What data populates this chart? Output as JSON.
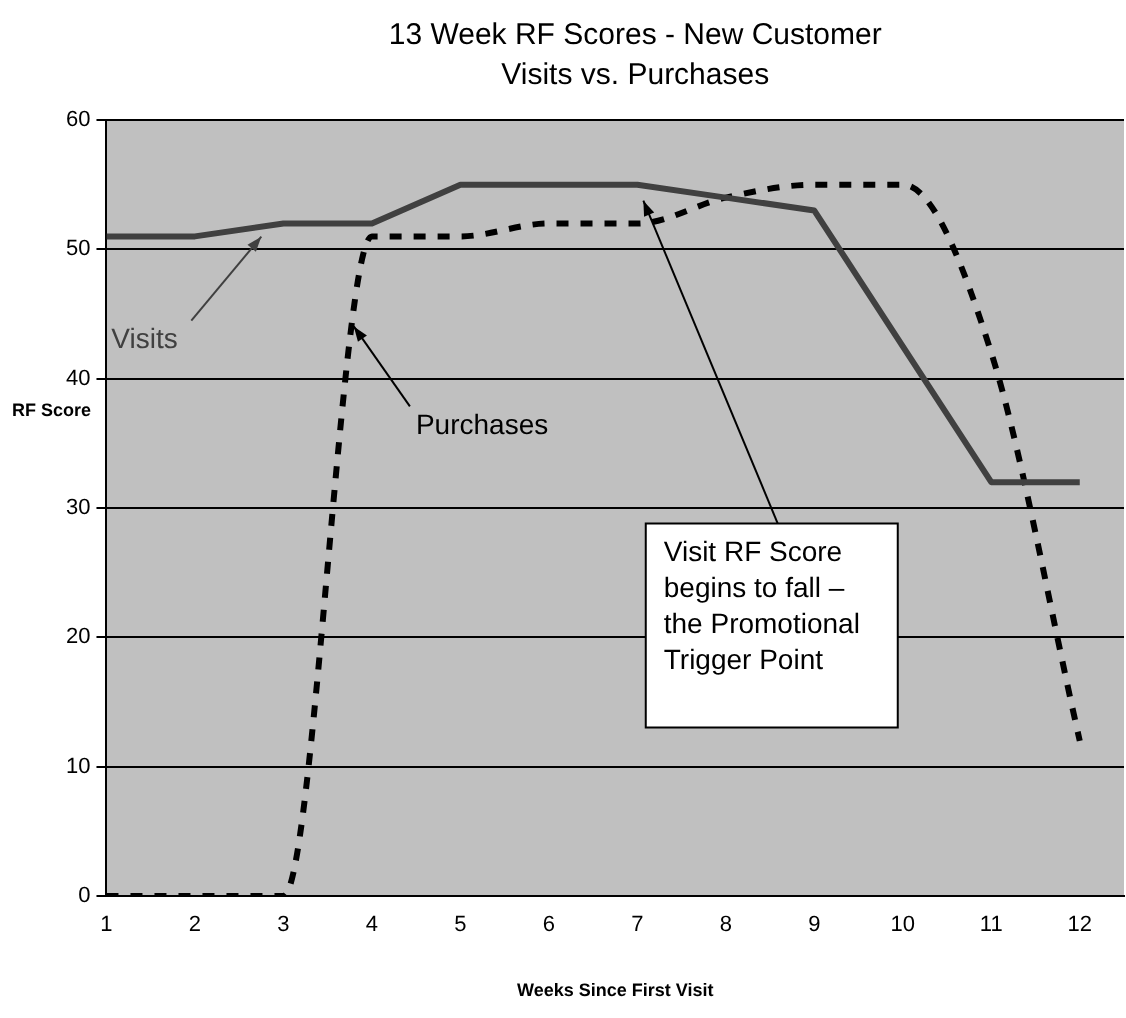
{
  "chart_data": {
    "type": "line",
    "title": "13 Week RF Scores - New Customer",
    "subtitle": "Visits vs. Purchases",
    "xlabel": "Weeks Since First Visit",
    "ylabel": "RF Score",
    "x": [
      1,
      2,
      3,
      4,
      5,
      6,
      7,
      8,
      9,
      10,
      11,
      12
    ],
    "series": [
      {
        "name": "Visits",
        "color": "#404040",
        "line_style": "solid",
        "values": [
          51,
          51,
          52,
          52,
          55,
          55,
          55,
          54,
          53,
          42.5,
          32,
          32
        ]
      },
      {
        "name": "Purchases",
        "color": "#000000",
        "line_style": "dashed",
        "values": [
          0,
          0,
          0,
          51,
          51,
          52,
          52,
          54,
          55,
          55,
          42,
          12
        ]
      }
    ],
    "xlim": [
      1,
      12.5
    ],
    "xticks": [
      1,
      2,
      3,
      4,
      5,
      6,
      7,
      8,
      9,
      10,
      11,
      12
    ],
    "ylim": [
      0,
      60
    ],
    "yticks": [
      0,
      10,
      20,
      30,
      40,
      50,
      60
    ],
    "grid": "y",
    "legend": false,
    "marker": "none",
    "annotations": [
      {
        "text": "Visit RF Score begins to fall – the Promotional Trigger Point",
        "x": 7,
        "y": 55
      }
    ]
  }
}
